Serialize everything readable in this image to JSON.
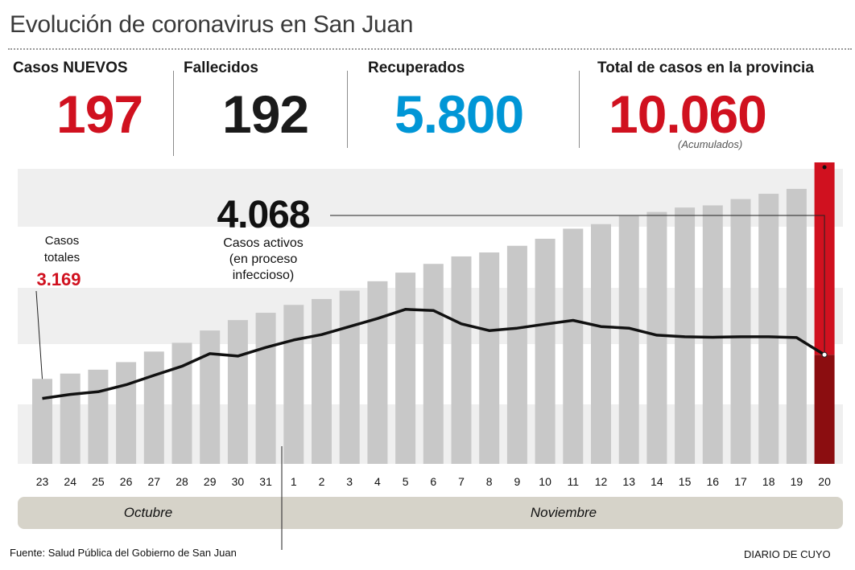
{
  "title": "Evolución de coronavirus en San Juan",
  "stats": [
    {
      "label": "Casos NUEVOS",
      "value": "197",
      "color": "#d0111f"
    },
    {
      "label": "Fallecidos",
      "value": "192",
      "color": "#1a1a1a"
    },
    {
      "label": "Recuperados",
      "value": "5.800",
      "color": "#0096d6"
    },
    {
      "label": "Total de casos en la provincia",
      "value": "10.060",
      "color": "#d0111f",
      "note": "(Acumulados)"
    }
  ],
  "annotations": {
    "casos_totales_label_1": "Casos",
    "casos_totales_label_2": "totales",
    "casos_totales_value": "3.169",
    "active_value": "4.068",
    "active_label_1": "Casos activos",
    "active_label_2": "(en proceso",
    "active_label_3": "infeccioso)"
  },
  "months": {
    "first": "Octubre",
    "second": "Noviembre"
  },
  "footer": {
    "source": "Fuente: Salud Pública del Gobierno de San Juan",
    "brand": "DIARIO DE CUYO"
  },
  "colors": {
    "bar": "#c8c8c8",
    "highlight_top": "#d0111f",
    "highlight_bottom": "#8b0d10",
    "line": "#111111",
    "band": "#efefef",
    "month_bar": "#d6d3c9"
  },
  "chart_data": {
    "type": "bar",
    "categories": [
      "23",
      "24",
      "25",
      "26",
      "27",
      "28",
      "29",
      "30",
      "31",
      "1",
      "2",
      "3",
      "4",
      "5",
      "6",
      "7",
      "8",
      "9",
      "10",
      "11",
      "12",
      "13",
      "14",
      "15",
      "16",
      "17",
      "18",
      "19",
      "20"
    ],
    "series": [
      {
        "name": "Casos totales",
        "values": [
          3169,
          3367,
          3512,
          3794,
          4187,
          4513,
          4973,
          5361,
          5633,
          5927,
          6146,
          6458,
          6809,
          7130,
          7456,
          7735,
          7882,
          8131,
          8393,
          8769,
          8938,
          9240,
          9393,
          9556,
          9637,
          9874,
          10070,
          10253,
          10060
        ]
      },
      {
        "name": "Casos activos",
        "values": [
          2440,
          2590,
          2690,
          2950,
          3300,
          3640,
          4110,
          4020,
          4340,
          4620,
          4820,
          5120,
          5420,
          5760,
          5720,
          5220,
          4970,
          5060,
          5210,
          5350,
          5120,
          5060,
          4800,
          4740,
          4720,
          4740,
          4740,
          4710,
          4068
        ]
      }
    ],
    "ylim": [
      0,
      11000
    ]
  }
}
